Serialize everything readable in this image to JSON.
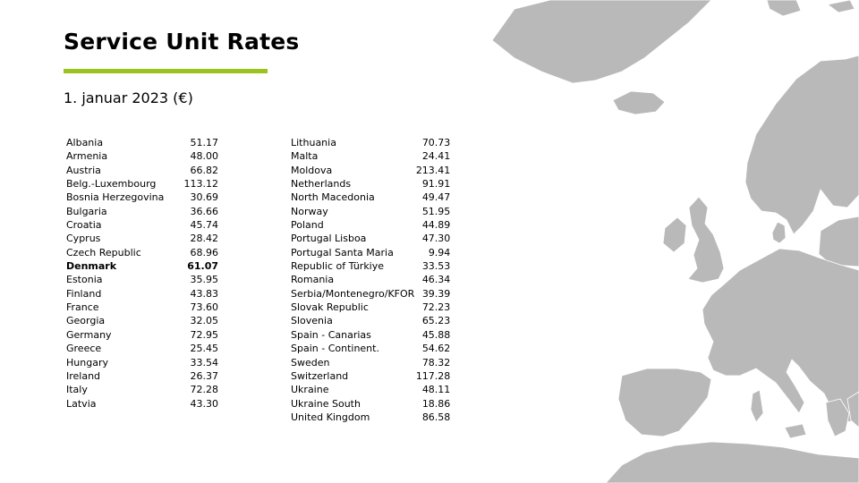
{
  "title": "Service Unit Rates",
  "subtitle": "1. januar 2023 (€)",
  "highlight_color": "#9bc31e",
  "highlighted_country": "Denmark",
  "rates_left": [
    {
      "country": "Albania",
      "rate": "51.17"
    },
    {
      "country": "Armenia",
      "rate": "48.00"
    },
    {
      "country": "Austria",
      "rate": "66.82"
    },
    {
      "country": "Belg.-Luxembourg",
      "rate": "113.12"
    },
    {
      "country": "Bosnia Herzegovina",
      "rate": "30.69"
    },
    {
      "country": "Bulgaria",
      "rate": "36.66"
    },
    {
      "country": "Croatia",
      "rate": "45.74"
    },
    {
      "country": "Cyprus",
      "rate": "28.42"
    },
    {
      "country": "Czech Republic",
      "rate": "68.96"
    },
    {
      "country": "Denmark",
      "rate": "61.07"
    },
    {
      "country": "Estonia",
      "rate": "35.95"
    },
    {
      "country": "Finland",
      "rate": "43.83"
    },
    {
      "country": "France",
      "rate": "73.60"
    },
    {
      "country": "Georgia",
      "rate": "32.05"
    },
    {
      "country": "Germany",
      "rate": "72.95"
    },
    {
      "country": "Greece",
      "rate": "25.45"
    },
    {
      "country": "Hungary",
      "rate": "33.54"
    },
    {
      "country": "Ireland",
      "rate": "26.37"
    },
    {
      "country": "Italy",
      "rate": "72.28"
    },
    {
      "country": "Latvia",
      "rate": "43.30"
    }
  ],
  "rates_right": [
    {
      "country": "Lithuania",
      "rate": "70.73"
    },
    {
      "country": "Malta",
      "rate": "24.41"
    },
    {
      "country": "Moldova",
      "rate": "213.41"
    },
    {
      "country": "Netherlands",
      "rate": "91.91"
    },
    {
      "country": "North Macedonia",
      "rate": "49.47"
    },
    {
      "country": "Norway",
      "rate": "51.95"
    },
    {
      "country": "Poland",
      "rate": "44.89"
    },
    {
      "country": "Portugal Lisboa",
      "rate": "47.30"
    },
    {
      "country": "Portugal Santa Maria",
      "rate": "9.94"
    },
    {
      "country": "Republic of Türkiye",
      "rate": "33.53"
    },
    {
      "country": "Romania",
      "rate": "46.34"
    },
    {
      "country": "Serbia/Montenegro/KFOR",
      "rate": "39.39"
    },
    {
      "country": "Slovak Republic",
      "rate": "72.23"
    },
    {
      "country": "Slovenia",
      "rate": "65.23"
    },
    {
      "country": "Spain - Canarias",
      "rate": "45.88"
    },
    {
      "country": "Spain - Continent.",
      "rate": "54.62"
    },
    {
      "country": "Sweden",
      "rate": "78.32"
    },
    {
      "country": "Switzerland",
      "rate": "117.28"
    },
    {
      "country": "Ukraine",
      "rate": "48.11"
    },
    {
      "country": "Ukraine South",
      "rate": "18.86"
    },
    {
      "country": "United Kingdom",
      "rate": "86.58"
    }
  ],
  "map": {
    "land_color": "#b9b9b9",
    "border_color": "#ffffff"
  }
}
